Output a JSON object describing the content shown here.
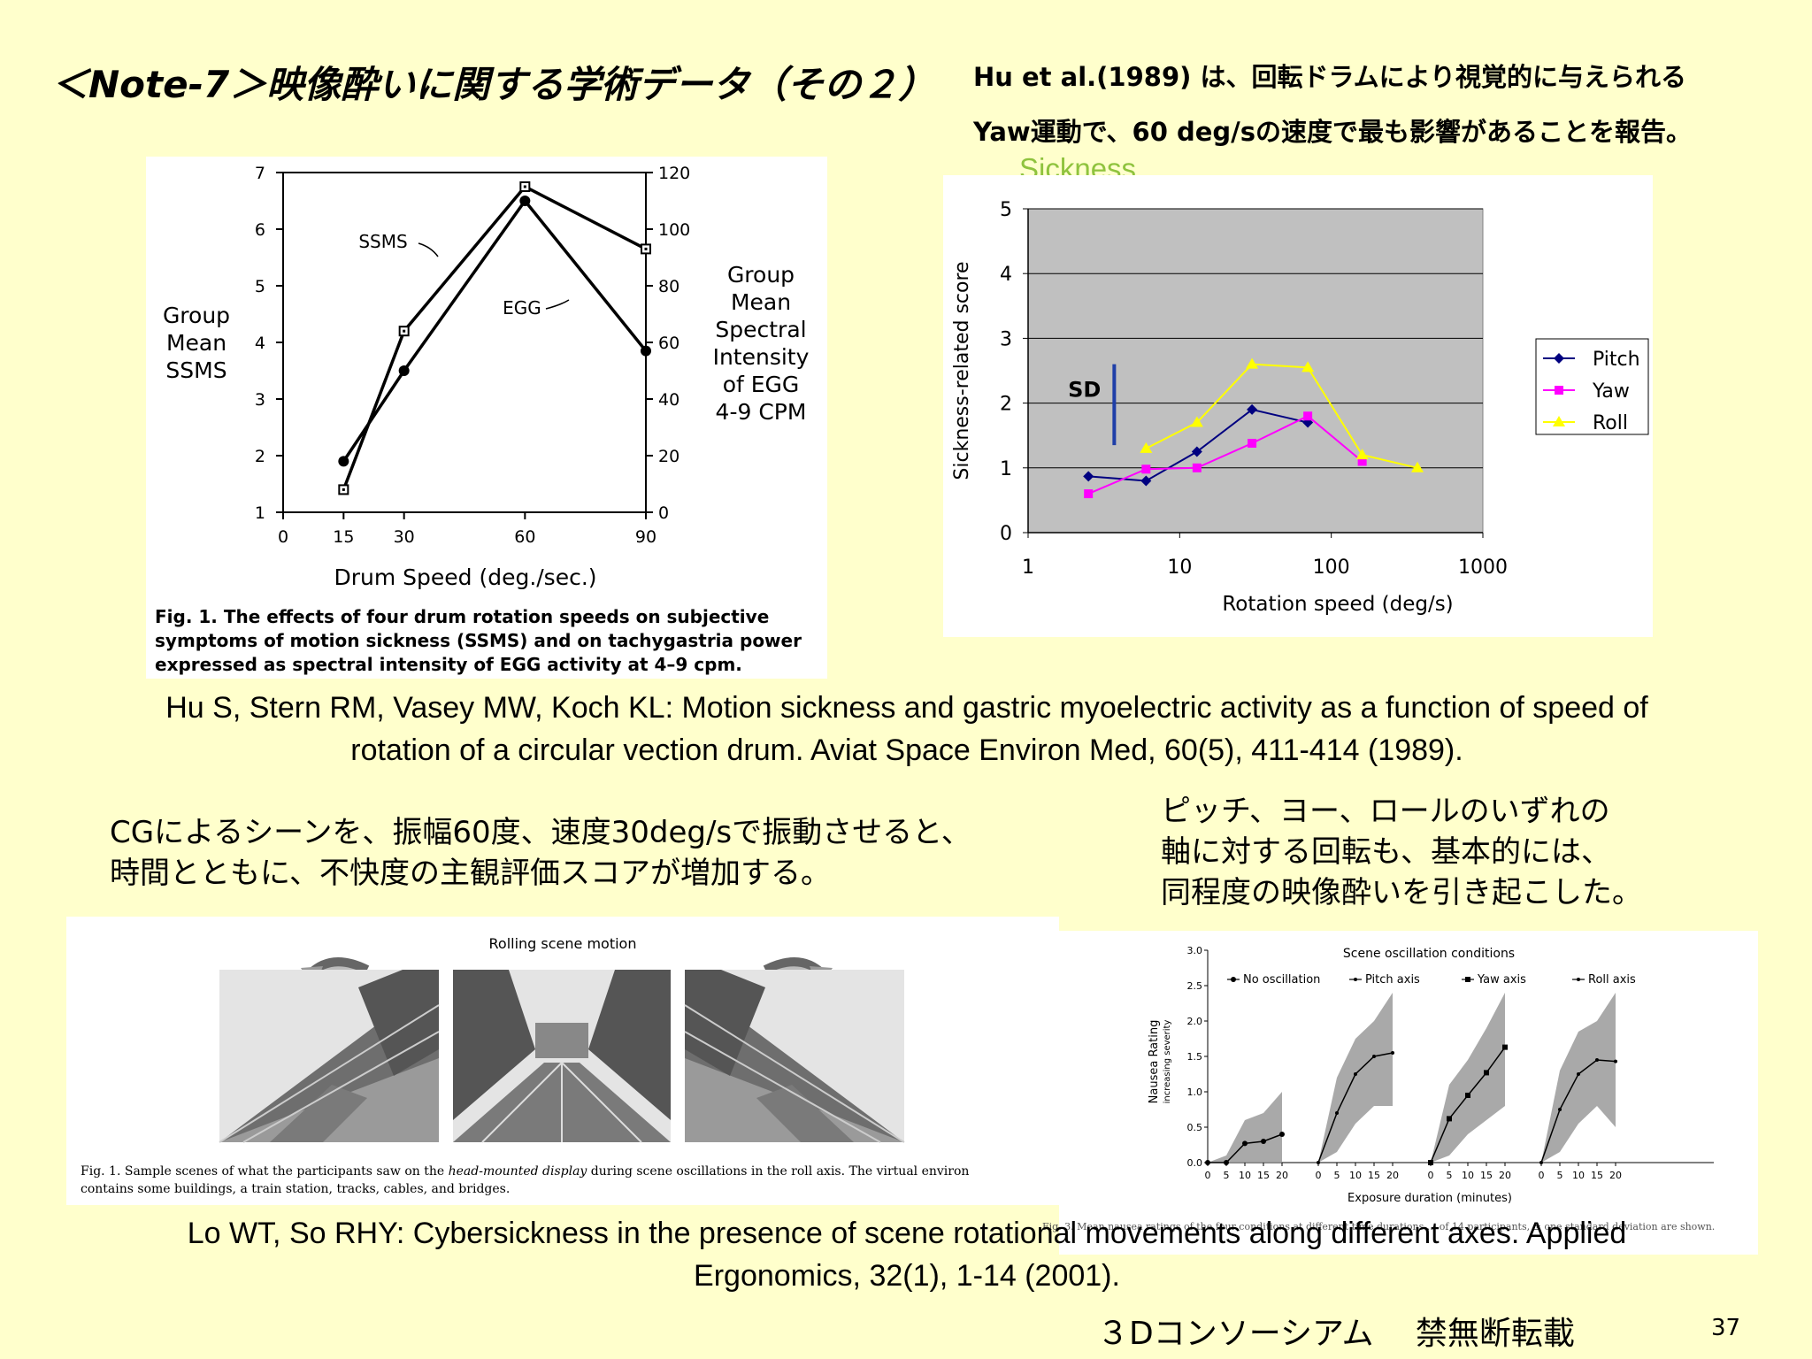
{
  "header": {
    "title": "＜Note-7＞映像酔いに関する学術データ（その２）",
    "note_line1": "Hu et al.(1989) は、回転ドラムにより視覚的に与えられる",
    "note_line2": "Yaw運動で、60 deg/sの速度で最も影響があることを報告。"
  },
  "fig_hu": {
    "left_axis_label": [
      "Group",
      "Mean",
      "SSMS"
    ],
    "right_axis_label": [
      "Group",
      "Mean",
      "Spectral",
      "Intensity",
      "of EGG",
      "4-9 CPM"
    ],
    "xlabel": "Drum Speed (deg./sec.)",
    "ssms_label": "SSMS",
    "egg_label": "EGG",
    "caption": [
      "Fig. 1.  The effects of four drum rotation speeds on subjective",
      "symptoms of motion sickness (SSMS) and on tachygastria power",
      "expressed as spectral intensity of EGG activity at 4–9 cpm."
    ]
  },
  "fig_sickness": {
    "title_link": "Sickness",
    "ylabel": "Sickness-related score",
    "xlabel": "Rotation speed (deg/s)",
    "sd_label": "SD"
  },
  "citation1": {
    "line1": "Hu S, Stern RM, Vasey MW, Koch KL:  Motion sickness and gastric myoelectric activity as a function of speed of",
    "line2": "rotation of a circular vection drum. Aviat Space Environ Med, 60(5), 411-414 (1989)."
  },
  "text_left": [
    "CGによるシーンを、振幅60度、速度30deg/sで振動させると、",
    "時間とともに、不快度の主観評価スコアが増加する。"
  ],
  "text_right": [
    "ピッチ、ヨー、ロールのいずれの",
    "軸に対する回転も、基本的には、",
    "同程度の映像酔いを引き起こした。"
  ],
  "fig_scene": {
    "label": "Rolling scene motion",
    "caption_prefix": "Fig. 1.  Sample scenes of what the participants saw on the ",
    "caption_em": "head-mounted display",
    "caption_rest": " during scene oscillations in the roll axis. The virtual environ",
    "caption_line2": "contains some buildings, a train station, tracks, cables, and bridges."
  },
  "fig_nausea": {
    "title": "Scene oscillation conditions",
    "ylabel": "Nausea Rating",
    "ylabel2": "increasing severity",
    "xlabel": "Exposure duration (minutes)",
    "footnote": "Fig. 3. Mean nausea ratings of the four conditions at different time durations ... of 14 participants, ± one standard deviation are shown."
  },
  "citation2": {
    "line1": "Lo WT, So RHY:  Cybersickness in the presence of scene rotational movements along different axes. Applied",
    "line2": "Ergonomics, 32(1), 1-14 (2001)."
  },
  "footer": {
    "org": "３Dコンソーシアム　 禁無断転載",
    "page": "37"
  },
  "chart_data": [
    {
      "type": "line",
      "x_ticks": [
        "0",
        "15",
        "30",
        "60",
        "90"
      ],
      "y_left_ticks": [
        "1",
        "2",
        "3",
        "4",
        "5",
        "6",
        "7"
      ],
      "y_right_ticks": [
        "0",
        "20",
        "40",
        "60",
        "80",
        "100",
        "120"
      ],
      "x": [
        15,
        30,
        60,
        90
      ],
      "series": [
        {
          "name": "SSMS",
          "marker": "square",
          "axis": "left",
          "values": [
            1.4,
            4.2,
            6.75,
            5.65
          ]
        },
        {
          "name": "EGG",
          "marker": "circle",
          "axis": "left",
          "values": [
            1.9,
            3.5,
            6.5,
            3.85
          ]
        }
      ],
      "xlim": [
        0,
        90
      ],
      "ylim_left": [
        1,
        7
      ],
      "ylim_right": [
        0,
        120
      ]
    },
    {
      "type": "line",
      "x_scale": "log",
      "x_ticks": [
        "1",
        "10",
        "100",
        "1000"
      ],
      "y_ticks": [
        "0",
        "1",
        "2",
        "3",
        "4",
        "5"
      ],
      "xlim": [
        1,
        1000
      ],
      "ylim": [
        0,
        5
      ],
      "sd_bar": {
        "x": 3.7,
        "y_from": 1.35,
        "y_to": 2.6
      },
      "legend_placement": "right",
      "series": [
        {
          "name": "Pitch",
          "color": "#000080",
          "marker": "diamond",
          "x": [
            2.5,
            6,
            13,
            30,
            70
          ],
          "values": [
            0.87,
            0.8,
            1.25,
            1.9,
            1.7
          ]
        },
        {
          "name": "Yaw",
          "color": "#ff00ff",
          "marker": "square",
          "x": [
            2.5,
            6,
            13,
            30,
            70,
            160
          ],
          "values": [
            0.6,
            0.98,
            1.0,
            1.38,
            1.8,
            1.1
          ]
        },
        {
          "name": "Roll",
          "color": "#ffff00",
          "marker": "triangle",
          "x": [
            6,
            13,
            30,
            70,
            160,
            370
          ],
          "values": [
            1.3,
            1.7,
            2.6,
            2.55,
            1.2,
            1.0
          ]
        }
      ]
    },
    {
      "type": "line",
      "title": "Scene oscillation conditions",
      "y_ticks": [
        "0.0",
        "0.5",
        "1.0",
        "1.5",
        "2.0",
        "2.5",
        "3.0"
      ],
      "x_ticks": [
        "0",
        "5",
        "10",
        "15",
        "20"
      ],
      "ylim": [
        0,
        3
      ],
      "panels": [
        {
          "name": "No oscillation",
          "marker": "circle",
          "x": [
            0,
            5,
            10,
            15,
            20
          ],
          "values": [
            0,
            0,
            0.27,
            0.3,
            0.4
          ],
          "upper": [
            0,
            0.1,
            0.6,
            0.7,
            1.0
          ],
          "lower": [
            0,
            0,
            0,
            0,
            0
          ]
        },
        {
          "name": "Pitch axis",
          "marker": "plus",
          "x": [
            0,
            5,
            10,
            15,
            20
          ],
          "values": [
            0,
            0.7,
            1.25,
            1.5,
            1.55
          ],
          "upper": [
            0,
            1.2,
            1.75,
            2.0,
            2.4
          ],
          "lower": [
            0,
            0.15,
            0.55,
            0.8,
            0.8
          ]
        },
        {
          "name": "Yaw axis",
          "marker": "square",
          "x": [
            0,
            5,
            10,
            15,
            20
          ],
          "values": [
            0,
            0.62,
            0.95,
            1.27,
            1.63
          ],
          "upper": [
            0,
            1.1,
            1.45,
            1.9,
            2.4
          ],
          "lower": [
            0,
            0.1,
            0.4,
            0.6,
            0.8
          ]
        },
        {
          "name": "Roll axis",
          "marker": "plus",
          "x": [
            0,
            5,
            10,
            15,
            20
          ],
          "values": [
            0,
            0.75,
            1.25,
            1.45,
            1.43
          ],
          "upper": [
            0,
            1.3,
            1.85,
            2.0,
            2.4
          ],
          "lower": [
            0,
            0.15,
            0.55,
            0.8,
            0.5
          ]
        }
      ]
    }
  ]
}
